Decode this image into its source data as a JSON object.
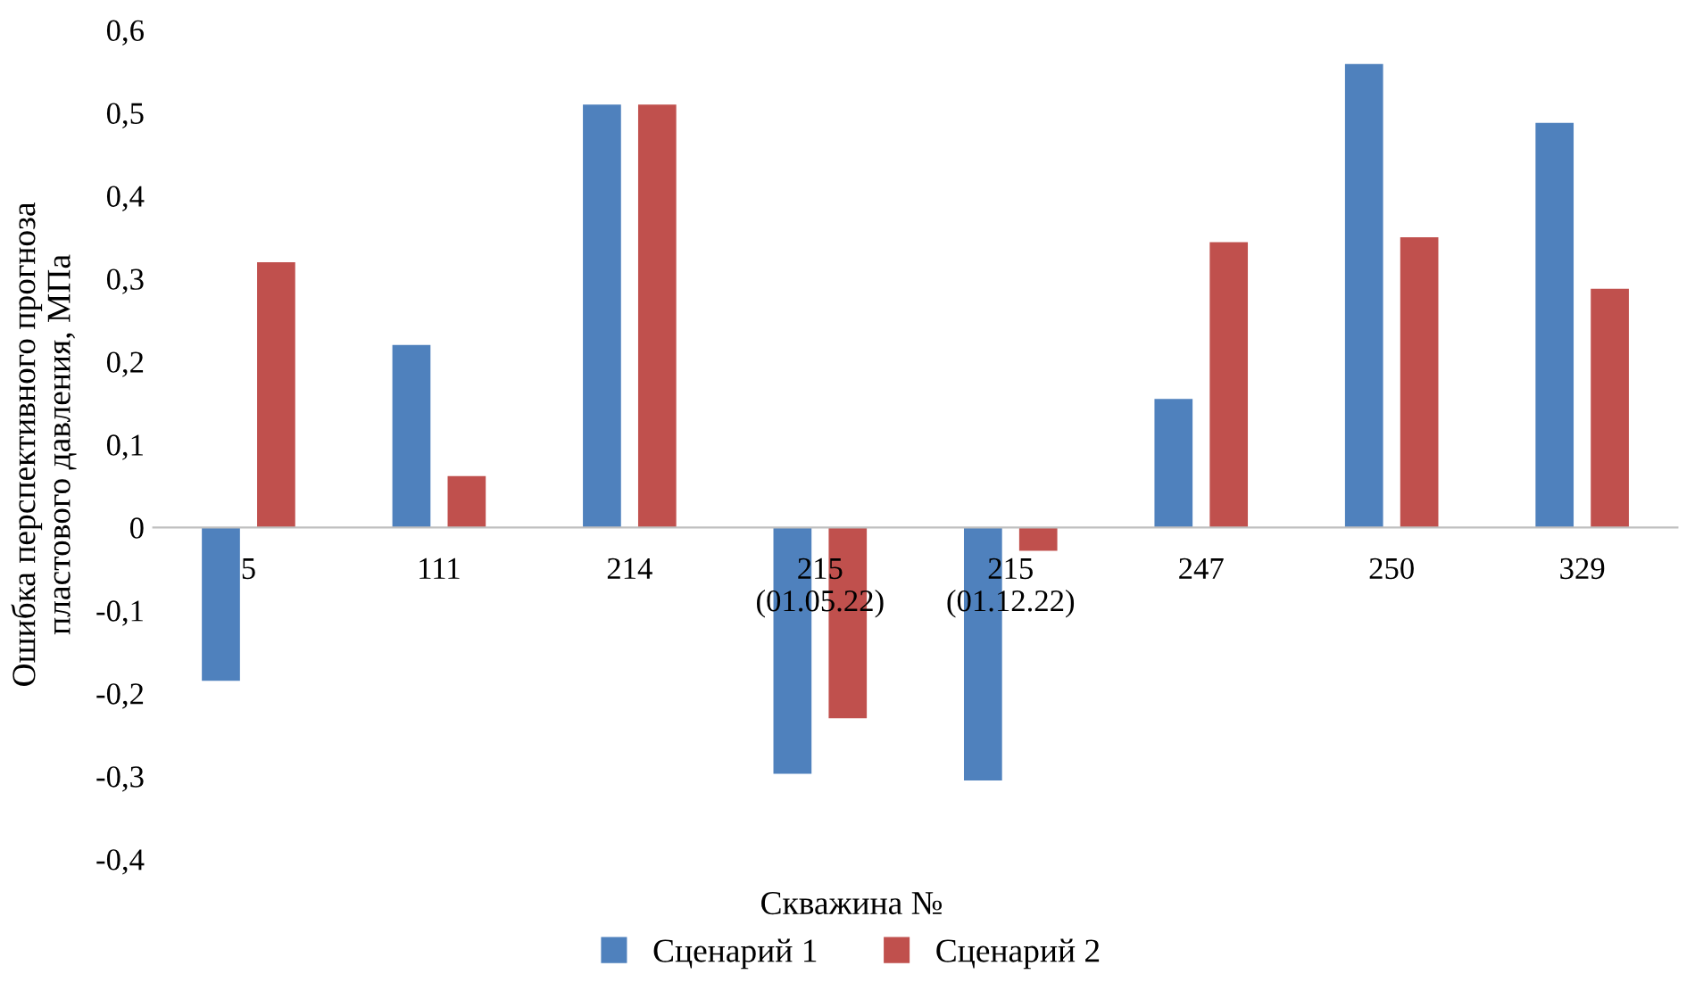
{
  "chart_data": {
    "type": "bar",
    "xlabel": "Скважина №",
    "ylabel": "Ошибка перспективного прогноза\nпластового давления, МПа",
    "categories": [
      "5",
      "111",
      "214",
      "215\n(01.05.22)",
      "215\n(01.12.22)",
      "247",
      "250",
      "329"
    ],
    "series": [
      {
        "name": "Сценарий 1",
        "color": "#4f81bd",
        "values": [
          -0.185,
          0.22,
          0.51,
          -0.297,
          -0.305,
          0.155,
          0.559,
          0.488
        ]
      },
      {
        "name": "Сценарий 2",
        "color": "#c0504d",
        "values": [
          0.32,
          0.062,
          0.51,
          -0.23,
          -0.028,
          0.344,
          0.35,
          0.288
        ]
      }
    ],
    "ylim": [
      -0.4,
      0.6
    ],
    "yticks": [
      {
        "value": -0.4,
        "label": "-0,4"
      },
      {
        "value": -0.3,
        "label": "-0,3"
      },
      {
        "value": -0.2,
        "label": "-0,2"
      },
      {
        "value": -0.1,
        "label": "-0,1"
      },
      {
        "value": 0,
        "label": "0"
      },
      {
        "value": 0.1,
        "label": "0,1"
      },
      {
        "value": 0.2,
        "label": "0,2"
      },
      {
        "value": 0.3,
        "label": "0,3"
      },
      {
        "value": 0.4,
        "label": "0,4"
      },
      {
        "value": 0.5,
        "label": "0,5"
      },
      {
        "value": 0.6,
        "label": "0,6"
      }
    ],
    "grid": false,
    "legend": "bottom"
  }
}
